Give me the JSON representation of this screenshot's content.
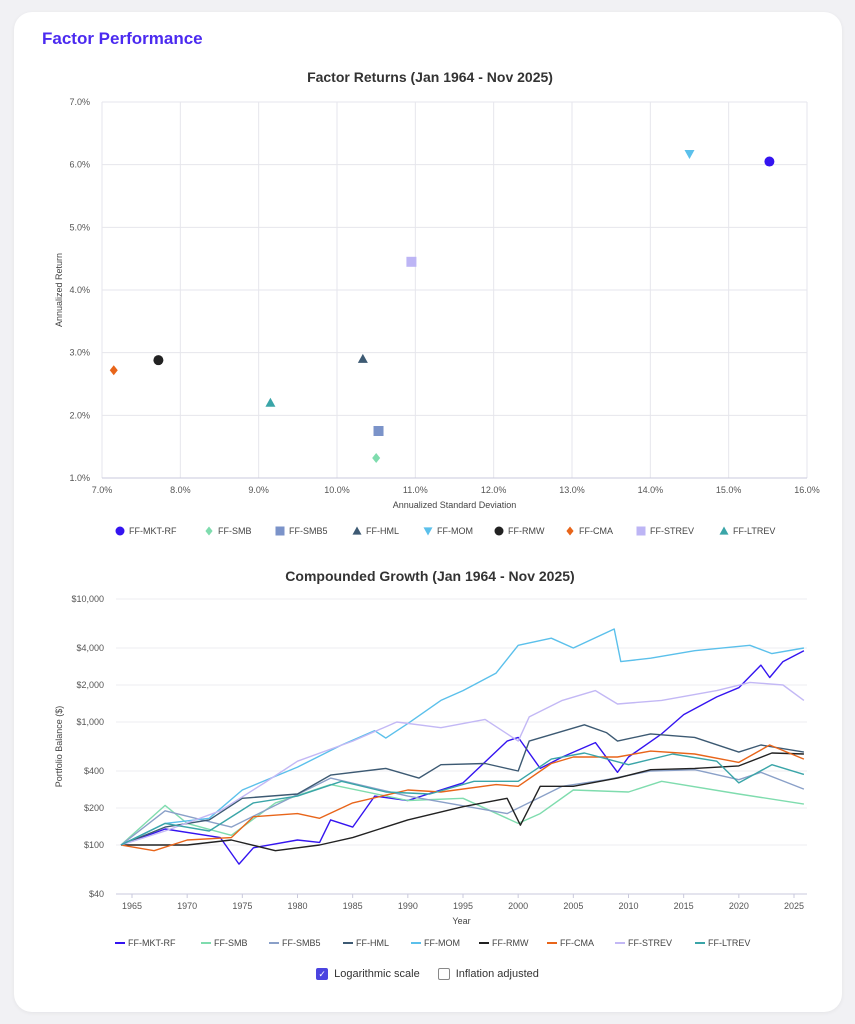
{
  "page_title": "Factor Performance",
  "chart_data": [
    {
      "type": "scatter",
      "title": "Factor Returns (Jan 1964 - Nov 2025)",
      "xlabel": "Annualized Standard Deviation",
      "ylabel": "Annualized Return",
      "xlim": [
        7.0,
        16.0
      ],
      "ylim": [
        1.0,
        7.0
      ],
      "xticks": [
        "7.0%",
        "8.0%",
        "9.0%",
        "10.0%",
        "11.0%",
        "12.0%",
        "13.0%",
        "14.0%",
        "15.0%",
        "16.0%"
      ],
      "yticks": [
        "1.0%",
        "2.0%",
        "3.0%",
        "4.0%",
        "5.0%",
        "6.0%",
        "7.0%"
      ],
      "grid": true,
      "legend": "bottom",
      "series": [
        {
          "name": "FF-MKT-RF",
          "x": 15.52,
          "y": 6.05,
          "marker": "circle",
          "color": "#3414f0"
        },
        {
          "name": "FF-SMB",
          "x": 10.5,
          "y": 1.32,
          "marker": "diamond",
          "color": "#7fdcae"
        },
        {
          "name": "FF-SMB5",
          "x": 10.53,
          "y": 1.75,
          "marker": "square",
          "color": "#7b93c9"
        },
        {
          "name": "FF-HML",
          "x": 10.33,
          "y": 2.9,
          "marker": "triangle-up",
          "color": "#3d5a73"
        },
        {
          "name": "FF-MOM",
          "x": 14.5,
          "y": 6.17,
          "marker": "triangle-down",
          "color": "#5bc0eb"
        },
        {
          "name": "FF-RMW",
          "x": 7.72,
          "y": 2.88,
          "marker": "circle",
          "color": "#222222"
        },
        {
          "name": "FF-CMA",
          "x": 7.15,
          "y": 2.72,
          "marker": "diamond",
          "color": "#e8651a"
        },
        {
          "name": "FF-STREV",
          "x": 10.95,
          "y": 4.45,
          "marker": "square",
          "color": "#bdb5f5"
        },
        {
          "name": "FF-LTREV",
          "x": 9.15,
          "y": 2.2,
          "marker": "triangle-up",
          "color": "#3aa5a8"
        }
      ]
    },
    {
      "type": "line",
      "title": "Compounded Growth (Jan 1964 - Nov 2025)",
      "xlabel": "Year",
      "ylabel": "Portfolio Balance ($)",
      "yscale": "log",
      "ylim": [
        40,
        10000
      ],
      "xticks": [
        "1965",
        "1970",
        "1975",
        "1980",
        "1985",
        "1990",
        "1995",
        "2000",
        "2005",
        "2010",
        "2015",
        "2020",
        "2025"
      ],
      "yticks": [
        {
          "v": 10000,
          "label": "$10,000"
        },
        {
          "v": 4000,
          "label": "$4,000"
        },
        {
          "v": 2000,
          "label": "$2,000"
        },
        {
          "v": 1000,
          "label": "$1,000"
        },
        {
          "v": 400,
          "label": "$400"
        },
        {
          "v": 200,
          "label": "$200"
        },
        {
          "v": 100,
          "label": "$100"
        },
        {
          "v": 40,
          "label": "$40"
        }
      ],
      "grid": true,
      "legend": "bottom",
      "series": [
        {
          "name": "FF-MKT-RF",
          "color": "#3414f0",
          "points": [
            [
              1964,
              100
            ],
            [
              1968,
              135
            ],
            [
              1973,
              115
            ],
            [
              1974.7,
              70
            ],
            [
              1976,
              95
            ],
            [
              1980,
              110
            ],
            [
              1982,
              105
            ],
            [
              1983,
              160
            ],
            [
              1985,
              140
            ],
            [
              1987,
              250
            ],
            [
              1990,
              230
            ],
            [
              1995,
              320
            ],
            [
              1999,
              700
            ],
            [
              2000,
              750
            ],
            [
              2002,
              420
            ],
            [
              2004,
              520
            ],
            [
              2007,
              680
            ],
            [
              2009,
              390
            ],
            [
              2010,
              520
            ],
            [
              2013,
              800
            ],
            [
              2015,
              1150
            ],
            [
              2018,
              1600
            ],
            [
              2020,
              1900
            ],
            [
              2022,
              2900
            ],
            [
              2022.8,
              2300
            ],
            [
              2024,
              3100
            ],
            [
              2025.9,
              3800
            ]
          ]
        },
        {
          "name": "FF-SMB",
          "color": "#7fdcae",
          "points": [
            [
              1964,
              100
            ],
            [
              1968,
              210
            ],
            [
              1970,
              150
            ],
            [
              1974,
              120
            ],
            [
              1978,
              220
            ],
            [
              1983,
              310
            ],
            [
              1990,
              230
            ],
            [
              1995,
              240
            ],
            [
              1999,
              165
            ],
            [
              2000,
              150
            ],
            [
              2002,
              180
            ],
            [
              2005,
              280
            ],
            [
              2010,
              270
            ],
            [
              2013,
              330
            ],
            [
              2020,
              260
            ],
            [
              2025.9,
              215
            ]
          ]
        },
        {
          "name": "FF-SMB5",
          "color": "#8aa0c8",
          "points": [
            [
              1964,
              100
            ],
            [
              1968,
              190
            ],
            [
              1974,
              140
            ],
            [
              1983,
              350
            ],
            [
              1990,
              250
            ],
            [
              1999,
              180
            ],
            [
              2004,
              300
            ],
            [
              2008,
              340
            ],
            [
              2012,
              400
            ],
            [
              2016,
              410
            ],
            [
              2020,
              340
            ],
            [
              2022,
              390
            ],
            [
              2025.9,
              285
            ]
          ]
        },
        {
          "name": "FF-HML",
          "color": "#3d5a73",
          "points": [
            [
              1964,
              100
            ],
            [
              1968,
              140
            ],
            [
              1972,
              160
            ],
            [
              1975,
              240
            ],
            [
              1980,
              260
            ],
            [
              1983,
              370
            ],
            [
              1988,
              420
            ],
            [
              1991,
              350
            ],
            [
              1993,
              450
            ],
            [
              1997,
              460
            ],
            [
              2000,
              400
            ],
            [
              2001,
              700
            ],
            [
              2006,
              950
            ],
            [
              2008,
              820
            ],
            [
              2009,
              700
            ],
            [
              2012,
              800
            ],
            [
              2016,
              750
            ],
            [
              2020,
              570
            ],
            [
              2022,
              650
            ],
            [
              2025.9,
              570
            ]
          ]
        },
        {
          "name": "FF-MOM",
          "color": "#5bc0eb",
          "points": [
            [
              1964,
              100
            ],
            [
              1968,
              150
            ],
            [
              1972,
              165
            ],
            [
              1975,
              280
            ],
            [
              1980,
              430
            ],
            [
              1984,
              650
            ],
            [
              1987,
              850
            ],
            [
              1988,
              740
            ],
            [
              1990,
              970
            ],
            [
              1993,
              1500
            ],
            [
              1995,
              1800
            ],
            [
              1998,
              2500
            ],
            [
              2000,
              4200
            ],
            [
              2003,
              4800
            ],
            [
              2005,
              4000
            ],
            [
              2008.7,
              5700
            ],
            [
              2009.3,
              3100
            ],
            [
              2012,
              3300
            ],
            [
              2016,
              3800
            ],
            [
              2021,
              4200
            ],
            [
              2023,
              3600
            ],
            [
              2025.9,
              4000
            ]
          ]
        },
        {
          "name": "FF-RMW",
          "color": "#222222",
          "points": [
            [
              1964,
              100
            ],
            [
              1970,
              100
            ],
            [
              1974,
              110
            ],
            [
              1978,
              90
            ],
            [
              1982,
              100
            ],
            [
              1985,
              115
            ],
            [
              1990,
              160
            ],
            [
              1995,
              205
            ],
            [
              1999,
              240
            ],
            [
              2000.2,
              145
            ],
            [
              2002,
              300
            ],
            [
              2005,
              300
            ],
            [
              2009,
              350
            ],
            [
              2012,
              410
            ],
            [
              2016,
              420
            ],
            [
              2020,
              440
            ],
            [
              2023,
              560
            ],
            [
              2025.9,
              550
            ]
          ]
        },
        {
          "name": "FF-CMA",
          "color": "#e8651a",
          "points": [
            [
              1964,
              100
            ],
            [
              1967,
              90
            ],
            [
              1970,
              110
            ],
            [
              1974,
              115
            ],
            [
              1976,
              170
            ],
            [
              1980,
              180
            ],
            [
              1982,
              165
            ],
            [
              1985,
              220
            ],
            [
              1990,
              280
            ],
            [
              1993,
              270
            ],
            [
              1998,
              310
            ],
            [
              2000,
              300
            ],
            [
              2003,
              460
            ],
            [
              2005,
              520
            ],
            [
              2009,
              520
            ],
            [
              2012,
              580
            ],
            [
              2016,
              550
            ],
            [
              2020,
              470
            ],
            [
              2022.8,
              650
            ],
            [
              2025.9,
              500
            ]
          ]
        },
        {
          "name": "FF-STREV",
          "color": "#c3b8f5",
          "points": [
            [
              1964,
              100
            ],
            [
              1968,
              130
            ],
            [
              1973,
              190
            ],
            [
              1977,
              320
            ],
            [
              1980,
              480
            ],
            [
              1985,
              700
            ],
            [
              1989,
              1000
            ],
            [
              1993,
              900
            ],
            [
              1997,
              1050
            ],
            [
              2000,
              700
            ],
            [
              2001,
              1100
            ],
            [
              2004,
              1500
            ],
            [
              2007,
              1800
            ],
            [
              2009,
              1400
            ],
            [
              2013,
              1500
            ],
            [
              2018,
              1800
            ],
            [
              2021,
              2100
            ],
            [
              2024,
              2000
            ],
            [
              2025.9,
              1500
            ]
          ]
        },
        {
          "name": "FF-LTREV",
          "color": "#3aa5a8",
          "points": [
            [
              1964,
              100
            ],
            [
              1968,
              150
            ],
            [
              1972,
              130
            ],
            [
              1976,
              220
            ],
            [
              1980,
              250
            ],
            [
              1984,
              330
            ],
            [
              1988,
              270
            ],
            [
              1992,
              260
            ],
            [
              1996,
              330
            ],
            [
              2000,
              330
            ],
            [
              2003,
              500
            ],
            [
              2006,
              560
            ],
            [
              2010,
              450
            ],
            [
              2014,
              550
            ],
            [
              2018,
              480
            ],
            [
              2020,
              320
            ],
            [
              2023,
              450
            ],
            [
              2025.9,
              375
            ]
          ]
        }
      ]
    }
  ],
  "options": {
    "log_scale": {
      "label": "Logarithmic scale",
      "checked": true
    },
    "inflation": {
      "label": "Inflation adjusted",
      "checked": false
    }
  }
}
